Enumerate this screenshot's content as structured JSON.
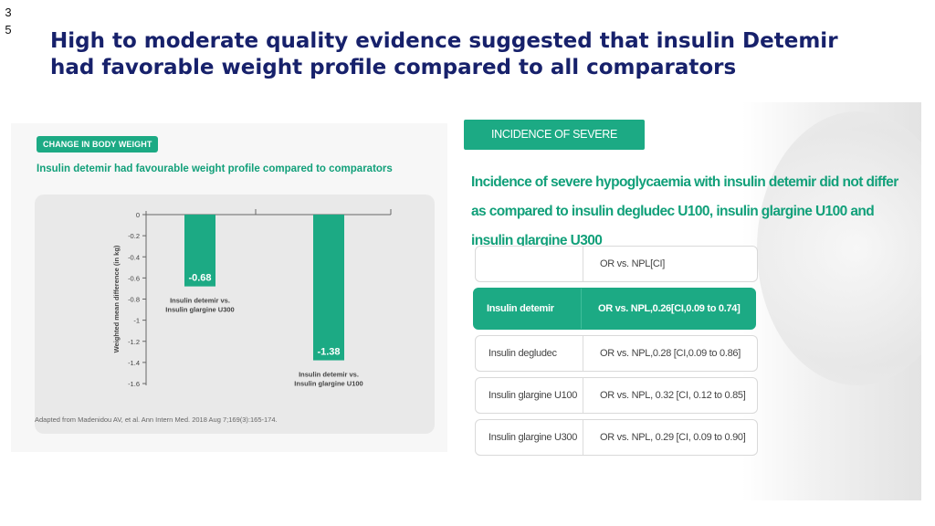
{
  "slide": {
    "number": "3\n5",
    "title": "High to moderate quality evidence suggested that insulin Detemir had favorable weight profile compared to all comparators"
  },
  "left_panel": {
    "tag": "CHANGE IN BODY WEIGHT",
    "subtitle": "Insulin detemir had favourable weight profile compared to comparators",
    "source": "Adapted from Madenidou AV, et al. Ann Intern Med. 2018 Aug 7;169(3):165-174."
  },
  "chart_data": {
    "type": "bar",
    "ylabel": "Weighted mean difference (in kg)",
    "yticks": [
      "0",
      "-0.2",
      "-0.4",
      "-0.6",
      "-0.8",
      "-1",
      "-1.2",
      "-1.4",
      "-1.6"
    ],
    "ylim": [
      -1.6,
      0
    ],
    "categories": [
      "Insulin detemir vs. Insulin glargine U300",
      "Insulin detemir vs. Insulin glargine U100"
    ],
    "values": [
      -0.68,
      -1.38
    ],
    "data_labels": [
      "-0.68",
      "-1.38"
    ],
    "bar_color": "#1caa84"
  },
  "right_panel": {
    "tag": "INCIDENCE OF SEVERE HYPOGLYCAEMIA",
    "subtitle": "Incidence of severe hypoglycaemia with insulin detemir did not differ as compared to insulin degludec U100, insulin glargine U100 and insulin glargine U300",
    "table": {
      "header": "OR vs. NPL[CI]",
      "rows": [
        {
          "drug": "Insulin detemir",
          "or": "OR vs. NPL,0.26[CI,0.09 to 0.74]"
        },
        {
          "drug": "Insulin degludec",
          "or": "OR vs. NPL,0.28 [CI,0.09 to 0.86]"
        },
        {
          "drug": "Insulin glargine U100",
          "or": "OR vs. NPL, 0.32 [CI, 0.12 to 0.85]"
        },
        {
          "drug": "Insulin glargine U300",
          "or": "OR vs. NPL, 0.29 [CI, 0.09 to 0.90]"
        }
      ]
    }
  },
  "colors": {
    "accent": "#1caa84",
    "title": "#17216b"
  }
}
